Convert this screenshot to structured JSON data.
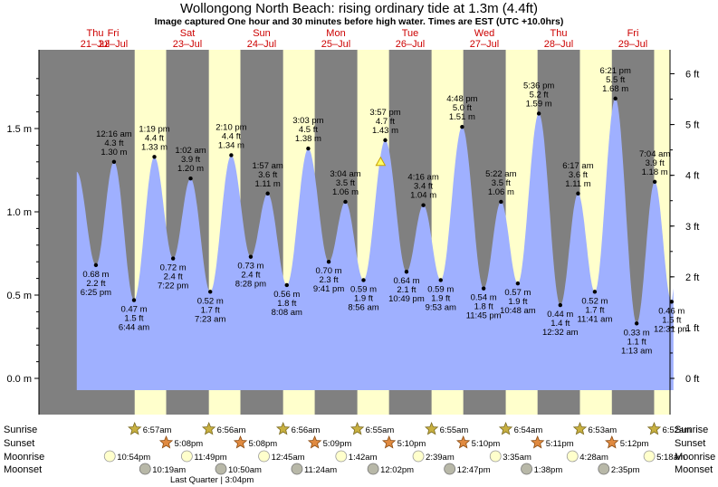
{
  "title": "Wollongong North Beach: rising  ordinary tide at 1.3m (4.4ft)",
  "subtitle": "Image captured One hour and 30 minutes before high water. Times are EST (UTC +10.0hrs)",
  "colors": {
    "night": "#808080",
    "day": "#ffffcc",
    "tide": "#9fb0ff",
    "day_label": "#cc0000",
    "sun": "#d4a52a",
    "sunset": "#e07a2a",
    "moonrise": "#ffffcc",
    "moonset": "#b8b8a8"
  },
  "days": [
    {
      "name": "Thu",
      "date": "21–Jul"
    },
    {
      "name": "Fri",
      "date": "22–Jul"
    },
    {
      "name": "Sat",
      "date": "23–Jul"
    },
    {
      "name": "Sun",
      "date": "24–Jul"
    },
    {
      "name": "Mon",
      "date": "25–Jul"
    },
    {
      "name": "Tue",
      "date": "26–Jul"
    },
    {
      "name": "Wed",
      "date": "27–Jul"
    },
    {
      "name": "Thu",
      "date": "28–Jul"
    },
    {
      "name": "Fri",
      "date": "29–Jul"
    }
  ],
  "chart_data": {
    "type": "area",
    "title": "Wollongong North Beach: rising  ordinary tide at 1.3m (4.4ft)",
    "y_left_ticks": [
      "1.5 m",
      "1.0 m",
      "0.5 m",
      "0.0 m"
    ],
    "y_left_values": [
      1.5,
      1.0,
      0.5,
      0.0
    ],
    "y_right_ticks": [
      "6 ft",
      "5 ft",
      "4 ft",
      "3 ft",
      "2 ft",
      "1 ft",
      "0 ft"
    ],
    "y_right_values": [
      6,
      5,
      4,
      3,
      2,
      1,
      0
    ],
    "ylim_m": [
      -0.07,
      1.95
    ],
    "x_range_hours": [
      0,
      204
    ],
    "tides": [
      {
        "time": "6:25 pm",
        "m": "0.68 m",
        "ft": "2.2 ft",
        "h": 18.42,
        "v": 0.68,
        "type": "low"
      },
      {
        "time": "12:16 am",
        "m": "1.30 m",
        "ft": "4.3 ft",
        "h": 24.27,
        "v": 1.3,
        "type": "high"
      },
      {
        "time": "6:44 am",
        "m": "0.47 m",
        "ft": "1.5 ft",
        "h": 30.73,
        "v": 0.47,
        "type": "low"
      },
      {
        "time": "1:19 pm",
        "m": "1.33 m",
        "ft": "4.4 ft",
        "h": 37.32,
        "v": 1.33,
        "type": "high"
      },
      {
        "time": "7:22 pm",
        "m": "0.72 m",
        "ft": "2.4 ft",
        "h": 43.37,
        "v": 0.72,
        "type": "low"
      },
      {
        "time": "1:02 am",
        "m": "1.20 m",
        "ft": "3.9 ft",
        "h": 49.03,
        "v": 1.2,
        "type": "high"
      },
      {
        "time": "7:23 am",
        "m": "0.52 m",
        "ft": "1.7 ft",
        "h": 55.38,
        "v": 0.52,
        "type": "low"
      },
      {
        "time": "2:10 pm",
        "m": "1.34 m",
        "ft": "4.4 ft",
        "h": 62.17,
        "v": 1.34,
        "type": "high"
      },
      {
        "time": "8:28 pm",
        "m": "0.73 m",
        "ft": "2.4 ft",
        "h": 68.47,
        "v": 0.73,
        "type": "low"
      },
      {
        "time": "1:57 am",
        "m": "1.11 m",
        "ft": "3.6 ft",
        "h": 73.95,
        "v": 1.11,
        "type": "high"
      },
      {
        "time": "8:08 am",
        "m": "0.56 m",
        "ft": "1.8 ft",
        "h": 80.13,
        "v": 0.56,
        "type": "low"
      },
      {
        "time": "3:03 pm",
        "m": "1.38 m",
        "ft": "4.5 ft",
        "h": 87.05,
        "v": 1.38,
        "type": "high"
      },
      {
        "time": "9:41 pm",
        "m": "0.70 m",
        "ft": "2.3 ft",
        "h": 93.68,
        "v": 0.7,
        "type": "low"
      },
      {
        "time": "3:04 am",
        "m": "1.06 m",
        "ft": "3.5 ft",
        "h": 99.07,
        "v": 1.06,
        "type": "high"
      },
      {
        "time": "8:56 am",
        "m": "0.59 m",
        "ft": "1.9 ft",
        "h": 104.93,
        "v": 0.59,
        "type": "low"
      },
      {
        "time": "3:57 pm",
        "m": "1.43 m",
        "ft": "4.7 ft",
        "h": 111.95,
        "v": 1.43,
        "type": "high"
      },
      {
        "time": "10:49 pm",
        "m": "0.64 m",
        "ft": "2.1 ft",
        "h": 118.82,
        "v": 0.64,
        "type": "low"
      },
      {
        "time": "4:16 am",
        "m": "1.04 m",
        "ft": "3.4 ft",
        "h": 124.27,
        "v": 1.04,
        "type": "high"
      },
      {
        "time": "9:53 am",
        "m": "0.59 m",
        "ft": "1.9 ft",
        "h": 129.88,
        "v": 0.59,
        "type": "low"
      },
      {
        "time": "4:48 pm",
        "m": "1.51 m",
        "ft": "5.0 ft",
        "h": 136.8,
        "v": 1.51,
        "type": "high"
      },
      {
        "time": "11:45 pm",
        "m": "0.54 m",
        "ft": "1.8 ft",
        "h": 143.75,
        "v": 0.54,
        "type": "low"
      },
      {
        "time": "5:22 am",
        "m": "1.06 m",
        "ft": "3.5 ft",
        "h": 149.37,
        "v": 1.06,
        "type": "high"
      },
      {
        "time": "10:48 am",
        "m": "0.57 m",
        "ft": "1.9 ft",
        "h": 154.8,
        "v": 0.57,
        "type": "low"
      },
      {
        "time": "5:36 pm",
        "m": "1.59 m",
        "ft": "5.2 ft",
        "h": 161.6,
        "v": 1.59,
        "type": "high"
      },
      {
        "time": "12:32 am",
        "m": "0.44 m",
        "ft": "1.4 ft",
        "h": 168.53,
        "v": 0.44,
        "type": "low"
      },
      {
        "time": "6:17 am",
        "m": "1.11 m",
        "ft": "3.6 ft",
        "h": 174.28,
        "v": 1.11,
        "type": "high"
      },
      {
        "time": "11:41 am",
        "m": "0.52 m",
        "ft": "1.7 ft",
        "h": 179.68,
        "v": 0.52,
        "type": "low"
      },
      {
        "time": "6:21 pm",
        "m": "1.68 m",
        "ft": "5.5 ft",
        "h": 186.35,
        "v": 1.68,
        "type": "high"
      },
      {
        "time": "1:13 am",
        "m": "0.33 m",
        "ft": "1.1 ft",
        "h": 193.22,
        "v": 0.33,
        "type": "low"
      },
      {
        "time": "7:04 am",
        "m": "1.18 m",
        "ft": "3.9 ft",
        "h": 199.07,
        "v": 1.18,
        "type": "high"
      },
      {
        "time": "12:31 pm",
        "m": "0.46 m",
        "ft": "1.5 ft",
        "h": 204.52,
        "v": 0.46,
        "type": "low"
      }
    ],
    "now_marker": {
      "h": 110.45,
      "v": 1.3
    },
    "daylight": [
      {
        "rise": 30.95,
        "set": 41.13
      },
      {
        "rise": 54.93,
        "set": 65.13
      },
      {
        "rise": 78.93,
        "set": 89.15
      },
      {
        "rise": 102.92,
        "set": 113.17
      },
      {
        "rise": 126.92,
        "set": 137.17
      },
      {
        "rise": 150.9,
        "set": 161.18
      },
      {
        "rise": 174.88,
        "set": 185.2
      },
      {
        "rise": 198.87,
        "set": 204
      }
    ]
  },
  "rows": {
    "labels": [
      "Sunrise",
      "Sunset",
      "Moonrise",
      "Moonset"
    ],
    "sunrise": [
      "6:57am",
      "6:56am",
      "6:56am",
      "6:55am",
      "6:55am",
      "6:54am",
      "6:53am",
      "6:52am"
    ],
    "sunset": [
      "5:08pm",
      "5:08pm",
      "5:09pm",
      "5:10pm",
      "5:10pm",
      "5:11pm",
      "5:12pm"
    ],
    "moonrise": [
      "10:54pm",
      "11:49pm",
      "12:45am",
      "1:42am",
      "2:39am",
      "3:35am",
      "4:28am",
      "5:18am"
    ],
    "moonset": [
      "10:19am",
      "10:50am",
      "11:24am",
      "12:02pm",
      "12:47pm",
      "1:38pm",
      "2:35pm"
    ],
    "moon_phase": "Last Quarter | 3:04pm"
  }
}
